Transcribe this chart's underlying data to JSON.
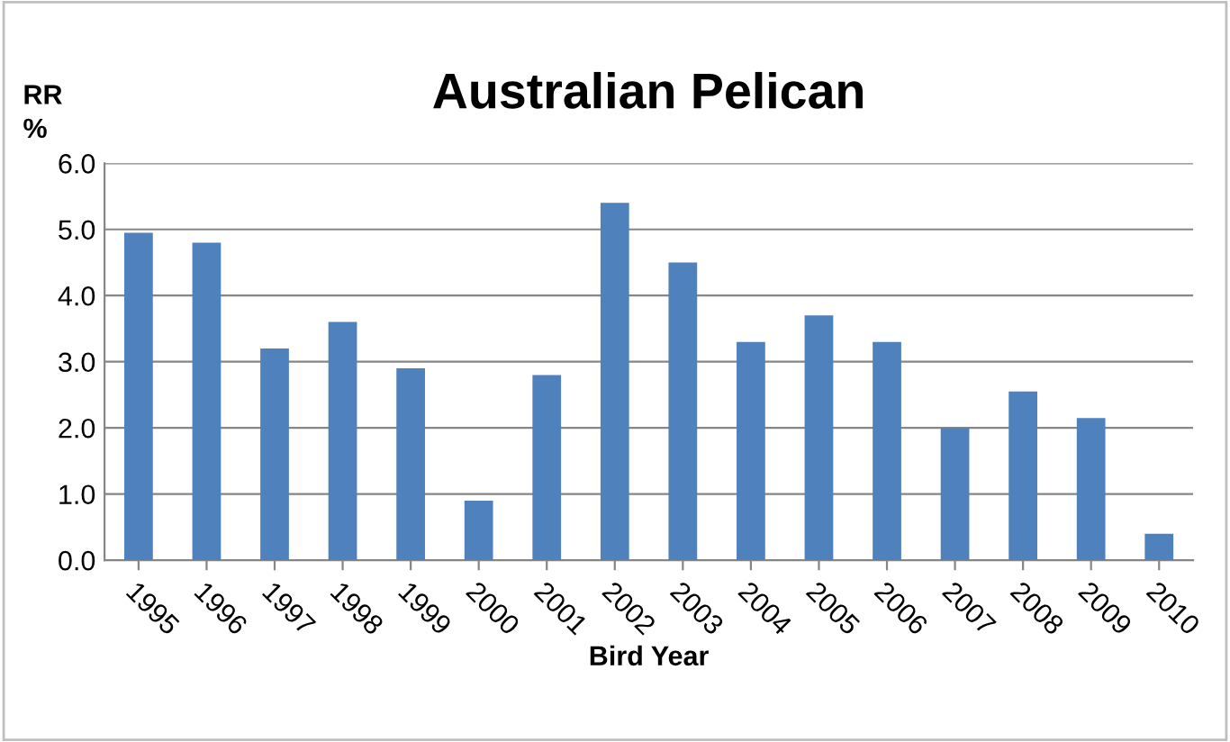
{
  "chart_data": {
    "type": "bar",
    "title": "Australian Pelican",
    "ylabel": "RR\n%",
    "xlabel": "Bird Year",
    "categories": [
      "1995",
      "1996",
      "1997",
      "1998",
      "1999",
      "2000",
      "2001",
      "2002",
      "2003",
      "2004",
      "2005",
      "2006",
      "2007",
      "2008",
      "2009",
      "2010"
    ],
    "values": [
      4.95,
      4.8,
      3.2,
      3.6,
      2.9,
      0.9,
      2.8,
      5.4,
      4.5,
      3.3,
      3.7,
      3.3,
      2.0,
      2.55,
      2.15,
      0.4
    ],
    "color": "#4f81bd",
    "ylim": [
      0,
      6
    ],
    "yticks": [
      {
        "value": 0,
        "label": "0.0"
      },
      {
        "value": 1,
        "label": "1.0"
      },
      {
        "value": 2,
        "label": "2.0"
      },
      {
        "value": 3,
        "label": "3.0"
      },
      {
        "value": 4,
        "label": "4.0"
      },
      {
        "value": 5,
        "label": "5.0"
      },
      {
        "value": 6,
        "label": "6.0"
      }
    ],
    "grid": "y",
    "legend": false
  }
}
